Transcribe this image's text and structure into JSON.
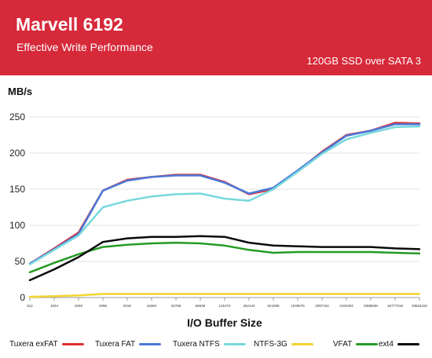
{
  "header": {
    "title": "Marvell 6192",
    "subtitle": "Effective Write Performance",
    "config": "120GB SSD over SATA 3"
  },
  "chart_data": {
    "type": "line",
    "title": "Marvell 6192",
    "subtitle": "Effective Write Performance",
    "xlabel": "I/O Buffer Size",
    "ylabel": "MB/s",
    "ylim": [
      0,
      250
    ],
    "yticks": [
      0,
      50,
      100,
      150,
      200,
      250
    ],
    "grid": "horizontal",
    "legend_position": "bottom",
    "x": [
      "512",
      "1024",
      "2048",
      "4096",
      "8192",
      "16384",
      "32768",
      "65536",
      "131072",
      "262144",
      "524288",
      "1048576",
      "2097152",
      "4194304",
      "8388608",
      "16777216",
      "33554432"
    ],
    "series": [
      {
        "name": "Tuxera exFAT",
        "color": "#e03030",
        "values": [
          47,
          68,
          90,
          148,
          163,
          167,
          170,
          170,
          160,
          143,
          150,
          175,
          202,
          225,
          231,
          242,
          241
        ]
      },
      {
        "name": "Tuxera FAT",
        "color": "#4a78d8",
        "values": [
          47,
          67,
          88,
          148,
          162,
          167,
          169,
          169,
          159,
          144,
          152,
          176,
          201,
          224,
          231,
          240,
          240
        ]
      },
      {
        "name": "Tuxera NTFS",
        "color": "#78d8dc",
        "values": [
          46,
          66,
          86,
          125,
          134,
          140,
          143,
          144,
          137,
          134,
          150,
          174,
          199,
          219,
          228,
          236,
          237
        ]
      },
      {
        "name": "NTFS-3G",
        "color": "#f2d431",
        "values": [
          1,
          2,
          3,
          5,
          5,
          5,
          5,
          5,
          5,
          5,
          5,
          5,
          5,
          5,
          5,
          5,
          5
        ]
      },
      {
        "name": "VFAT",
        "color": "#259b25",
        "values": [
          35,
          48,
          60,
          70,
          73,
          75,
          76,
          75,
          72,
          66,
          62,
          63,
          63,
          63,
          63,
          62,
          61
        ]
      },
      {
        "name": "ext4",
        "color": "#0a0a0a",
        "values": [
          24,
          39,
          56,
          77,
          82,
          84,
          84,
          85,
          84,
          76,
          72,
          71,
          70,
          70,
          70,
          68,
          67
        ]
      }
    ]
  }
}
